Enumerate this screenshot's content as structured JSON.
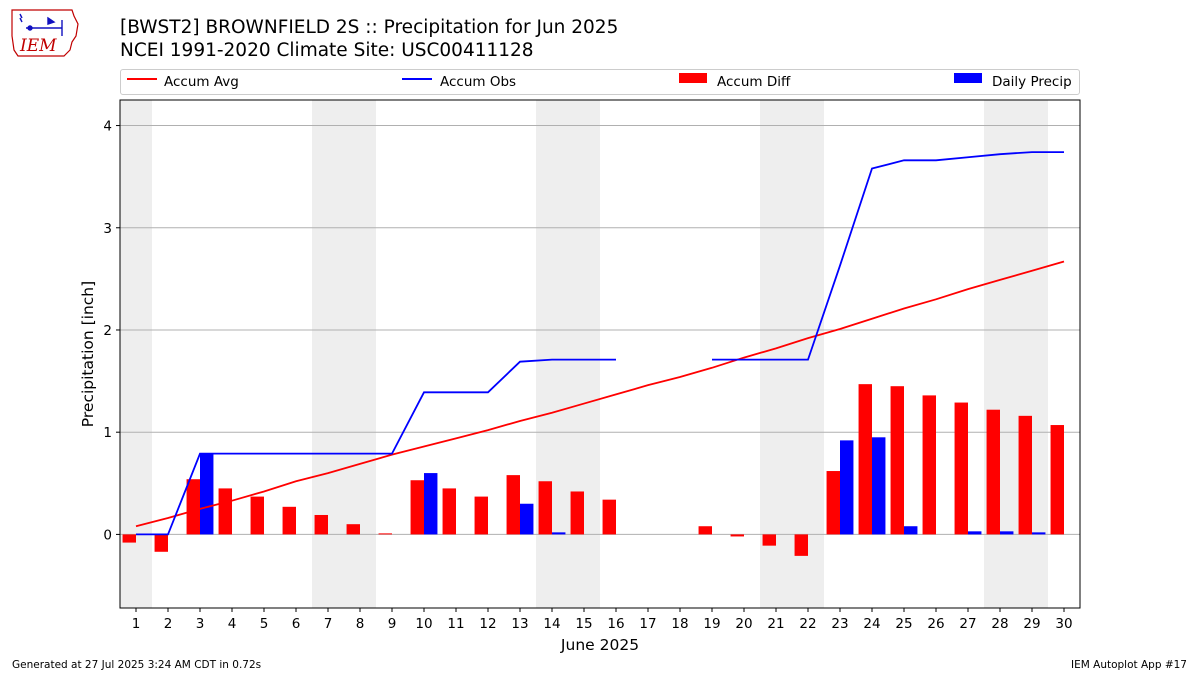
{
  "header": {
    "logo_text": "IEM",
    "title_line1": "[BWST2] BROWNFIELD 2S :: Precipitation for Jun 2025",
    "title_line2": "NCEI 1991-2020 Climate Site: USC00411128"
  },
  "legend": {
    "accum_avg": "Accum Avg",
    "accum_obs": "Accum Obs",
    "accum_diff": "Accum Diff",
    "daily_precip": "Daily Precip"
  },
  "colors": {
    "accum_avg": "#ff0000",
    "accum_obs": "#0000ff",
    "accum_diff": "#ff0000",
    "daily_precip": "#0000ff",
    "weekend_shade": "#eeeeee",
    "grid": "#b0b0b0"
  },
  "footer": {
    "left": "Generated at 27 Jul 2025 3:24 AM CDT in 0.72s",
    "right": "IEM Autoplot App #17"
  },
  "chart_data": {
    "type": "bar",
    "xlabel": "June 2025",
    "ylabel": "Precipitation [inch]",
    "xlim": [
      0.5,
      30.5
    ],
    "ylim": [
      -0.72,
      4.25
    ],
    "yticks": [
      0,
      1,
      2,
      3,
      4
    ],
    "grid": "horizontal",
    "legend_position": "top",
    "days": [
      1,
      2,
      3,
      4,
      5,
      6,
      7,
      8,
      9,
      10,
      11,
      12,
      13,
      14,
      15,
      16,
      17,
      18,
      19,
      20,
      21,
      22,
      23,
      24,
      25,
      26,
      27,
      28,
      29,
      30
    ],
    "shaded_days": [
      1,
      7,
      8,
      14,
      15,
      21,
      22,
      28,
      29
    ],
    "series": [
      {
        "name": "Accum Avg",
        "kind": "line",
        "values": [
          0.08,
          0.16,
          0.25,
          0.33,
          0.42,
          0.52,
          0.6,
          0.69,
          0.78,
          0.86,
          0.94,
          1.02,
          1.11,
          1.19,
          1.28,
          1.37,
          1.46,
          1.54,
          1.63,
          1.73,
          1.82,
          1.92,
          2.01,
          2.11,
          2.21,
          2.3,
          2.4,
          2.49,
          2.58,
          2.67
        ]
      },
      {
        "name": "Accum Obs",
        "kind": "line",
        "values": [
          0.0,
          0.0,
          0.79,
          0.79,
          0.79,
          0.79,
          0.79,
          0.79,
          0.79,
          1.39,
          1.39,
          1.39,
          1.69,
          1.71,
          1.71,
          1.71,
          null,
          null,
          1.71,
          1.71,
          1.71,
          1.71,
          2.63,
          3.58,
          3.66,
          3.66,
          3.69,
          3.72,
          3.74,
          3.74
        ]
      },
      {
        "name": "Accum Diff",
        "kind": "bar",
        "values": [
          -0.08,
          -0.17,
          0.54,
          0.45,
          0.37,
          0.27,
          0.19,
          0.1,
          0.01,
          0.53,
          0.45,
          0.37,
          0.58,
          0.52,
          0.42,
          0.34,
          null,
          null,
          0.08,
          -0.02,
          -0.11,
          -0.21,
          0.62,
          1.47,
          1.45,
          1.36,
          1.29,
          1.22,
          1.16,
          1.07
        ]
      },
      {
        "name": "Daily Precip",
        "kind": "bar",
        "values": [
          0,
          0,
          0.79,
          0,
          0,
          0,
          0,
          0,
          0,
          0.6,
          0,
          0,
          0.3,
          0.02,
          0,
          0,
          null,
          null,
          0,
          0,
          0,
          0,
          0.92,
          0.95,
          0.08,
          0,
          0.03,
          0.03,
          0.02,
          0
        ]
      }
    ]
  }
}
